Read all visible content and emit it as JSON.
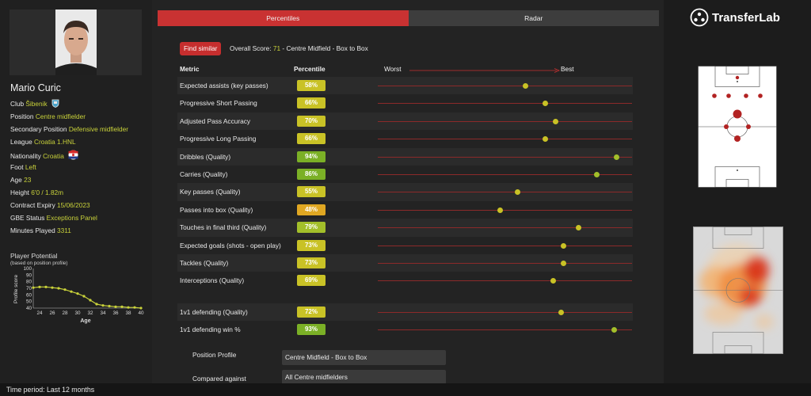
{
  "player": {
    "name": "Mario Curic",
    "info": [
      {
        "label": "Club",
        "value": "Šibenik",
        "icon": "club-crest-icon"
      },
      {
        "label": "Position",
        "value": "Centre midfielder"
      },
      {
        "label": "Secondary Position",
        "value": "Defensive midfielder"
      },
      {
        "label": "League",
        "value": "Croatia 1.HNL"
      },
      {
        "label": "Nationality",
        "value": "Croatia",
        "icon": "croatia-flag-icon"
      },
      {
        "label": "Foot",
        "value": "Left"
      },
      {
        "label": "Age",
        "value": "23"
      },
      {
        "label": "Height",
        "value": "6'0 / 1.82m"
      },
      {
        "label": "Contract Expiry",
        "value": "15/06/2023"
      },
      {
        "label": "GBE Status",
        "value": "Exceptions Panel"
      },
      {
        "label": "Minutes Played",
        "value": "3311"
      }
    ]
  },
  "potential": {
    "title": "Player Potential",
    "subtitle": "(based on position profile)",
    "ylabel": "Profile score",
    "xlabel": "Age",
    "yticks": [
      "100",
      "90",
      "80",
      "70",
      "60",
      "50",
      "40"
    ],
    "xticks": [
      "24",
      "26",
      "28",
      "30",
      "32",
      "34",
      "36",
      "38",
      "40"
    ],
    "x": [
      23,
      24,
      25,
      26,
      27,
      28,
      29,
      30,
      31,
      32,
      33,
      34,
      35,
      36,
      37,
      38,
      39,
      40
    ],
    "y": [
      71,
      72,
      72,
      71,
      70,
      68,
      65,
      62,
      58,
      52,
      46,
      44,
      43,
      42,
      42,
      41,
      41,
      40
    ]
  },
  "tabs": {
    "percentiles": "Percentiles",
    "radar": "Radar"
  },
  "find_similar": "Find similar",
  "overall": {
    "prefix": "Overall Score: ",
    "score": "71",
    "suffix": " - Centre Midfield - Box to Box"
  },
  "headers": {
    "metric": "Metric",
    "percentile": "Percentile",
    "worst": "Worst",
    "best": "Best"
  },
  "metrics": [
    {
      "label": "Expected assists (key passes)",
      "pct": 58,
      "pct_text": "58%"
    },
    {
      "label": "Progressive Short Passing",
      "pct": 66,
      "pct_text": "66%"
    },
    {
      "label": "Adjusted Pass Accuracy",
      "pct": 70,
      "pct_text": "70%"
    },
    {
      "label": "Progressive Long Passing",
      "pct": 66,
      "pct_text": "66%"
    },
    {
      "label": "Dribbles (Quality)",
      "pct": 94,
      "pct_text": "94%"
    },
    {
      "label": "Carries (Quality)",
      "pct": 86,
      "pct_text": "86%"
    },
    {
      "label": "Key passes (Quality)",
      "pct": 55,
      "pct_text": "55%"
    },
    {
      "label": "Passes into box (Quality)",
      "pct": 48,
      "pct_text": "48%"
    },
    {
      "label": "Touches in final third (Quality)",
      "pct": 79,
      "pct_text": "79%"
    },
    {
      "label": "Expected goals (shots - open play)",
      "pct": 73,
      "pct_text": "73%"
    },
    {
      "label": "Tackles (Quality)",
      "pct": 73,
      "pct_text": "73%"
    },
    {
      "label": "Interceptions (Quality)",
      "pct": 69,
      "pct_text": "69%"
    }
  ],
  "defending_metrics": [
    {
      "label": "1v1 defending (Quality)",
      "pct": 72,
      "pct_text": "72%"
    },
    {
      "label": "1v1 defending win %",
      "pct": 93,
      "pct_text": "93%"
    }
  ],
  "colors": {
    "green": "#7bb026",
    "lime": "#a3bf2a",
    "yellow": "#c9c226",
    "orange": "#e0a722",
    "accent_red": "#c93232",
    "highlight": "#c9d23a"
  },
  "position_profile": {
    "label": "Position Profile",
    "value": "Centre Midfield - Box to Box"
  },
  "compared_against": {
    "label": "Compared against",
    "value": "All Centre midfielders"
  },
  "logo": {
    "text": "TransferLab",
    "icon": "transferlab-logo-icon"
  },
  "time_period": "Time period: Last 12 months"
}
